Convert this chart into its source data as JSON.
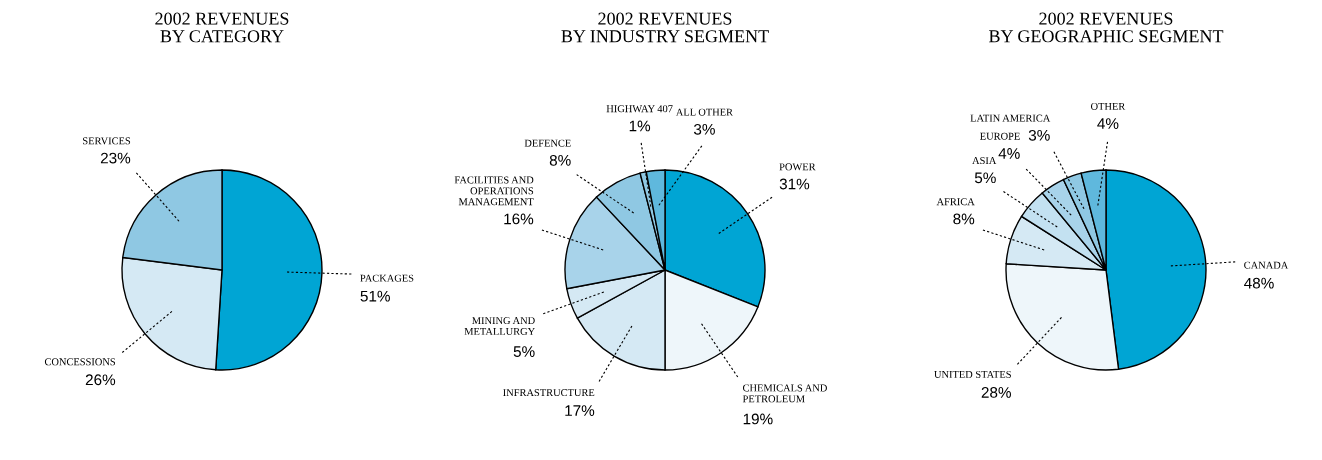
{
  "chart_data": [
    {
      "type": "pie",
      "title": "2002 REVENUES\nBY CATEGORY",
      "categories": [
        "PACKAGES",
        "CONCESSIONS",
        "SERVICES"
      ],
      "values": [
        51,
        26,
        23
      ],
      "value_labels": [
        "51%",
        "26%",
        "23%"
      ],
      "colors": [
        "#00a5d4",
        "#d5e9f4",
        "#8fc8e3"
      ]
    },
    {
      "type": "pie",
      "title": "2002 REVENUES\nBY INDUSTRY SEGMENT",
      "categories": [
        "POWER",
        "CHEMICALS AND\nPETROLEUM",
        "INFRASTRUCTURE",
        "MINING AND\nMETALLURGY",
        "FACILITIES AND\nOPERATIONS\nMANAGEMENT",
        "DEFENCE",
        "HIGHWAY 407",
        "ALL OTHER"
      ],
      "values": [
        31,
        19,
        17,
        5,
        16,
        8,
        1,
        3
      ],
      "value_labels": [
        "31%",
        "19%",
        "17%",
        "5%",
        "16%",
        "8%",
        "1%",
        "3%"
      ],
      "colors": [
        "#00a5d4",
        "#eef6fa",
        "#d5e9f4",
        "#d5e9f4",
        "#a8d3ea",
        "#8fc8e3",
        "#8fc8e3",
        "#5fb8dd"
      ]
    },
    {
      "type": "pie",
      "title": "2002 REVENUES\nBY GEOGRAPHIC SEGMENT",
      "categories": [
        "CANADA",
        "UNITED STATES",
        "AFRICA",
        "ASIA",
        "EUROPE",
        "LATIN AMERICA",
        "OTHER"
      ],
      "values": [
        48,
        28,
        8,
        5,
        4,
        3,
        4
      ],
      "value_labels": [
        "48%",
        "28%",
        "8%",
        "5%",
        "4%",
        "3%",
        "4%"
      ],
      "colors": [
        "#00a5d4",
        "#eef6fa",
        "#d5e9f4",
        "#c3e1f1",
        "#a8d3ea",
        "#8fc8e3",
        "#5fb8dd"
      ]
    }
  ]
}
